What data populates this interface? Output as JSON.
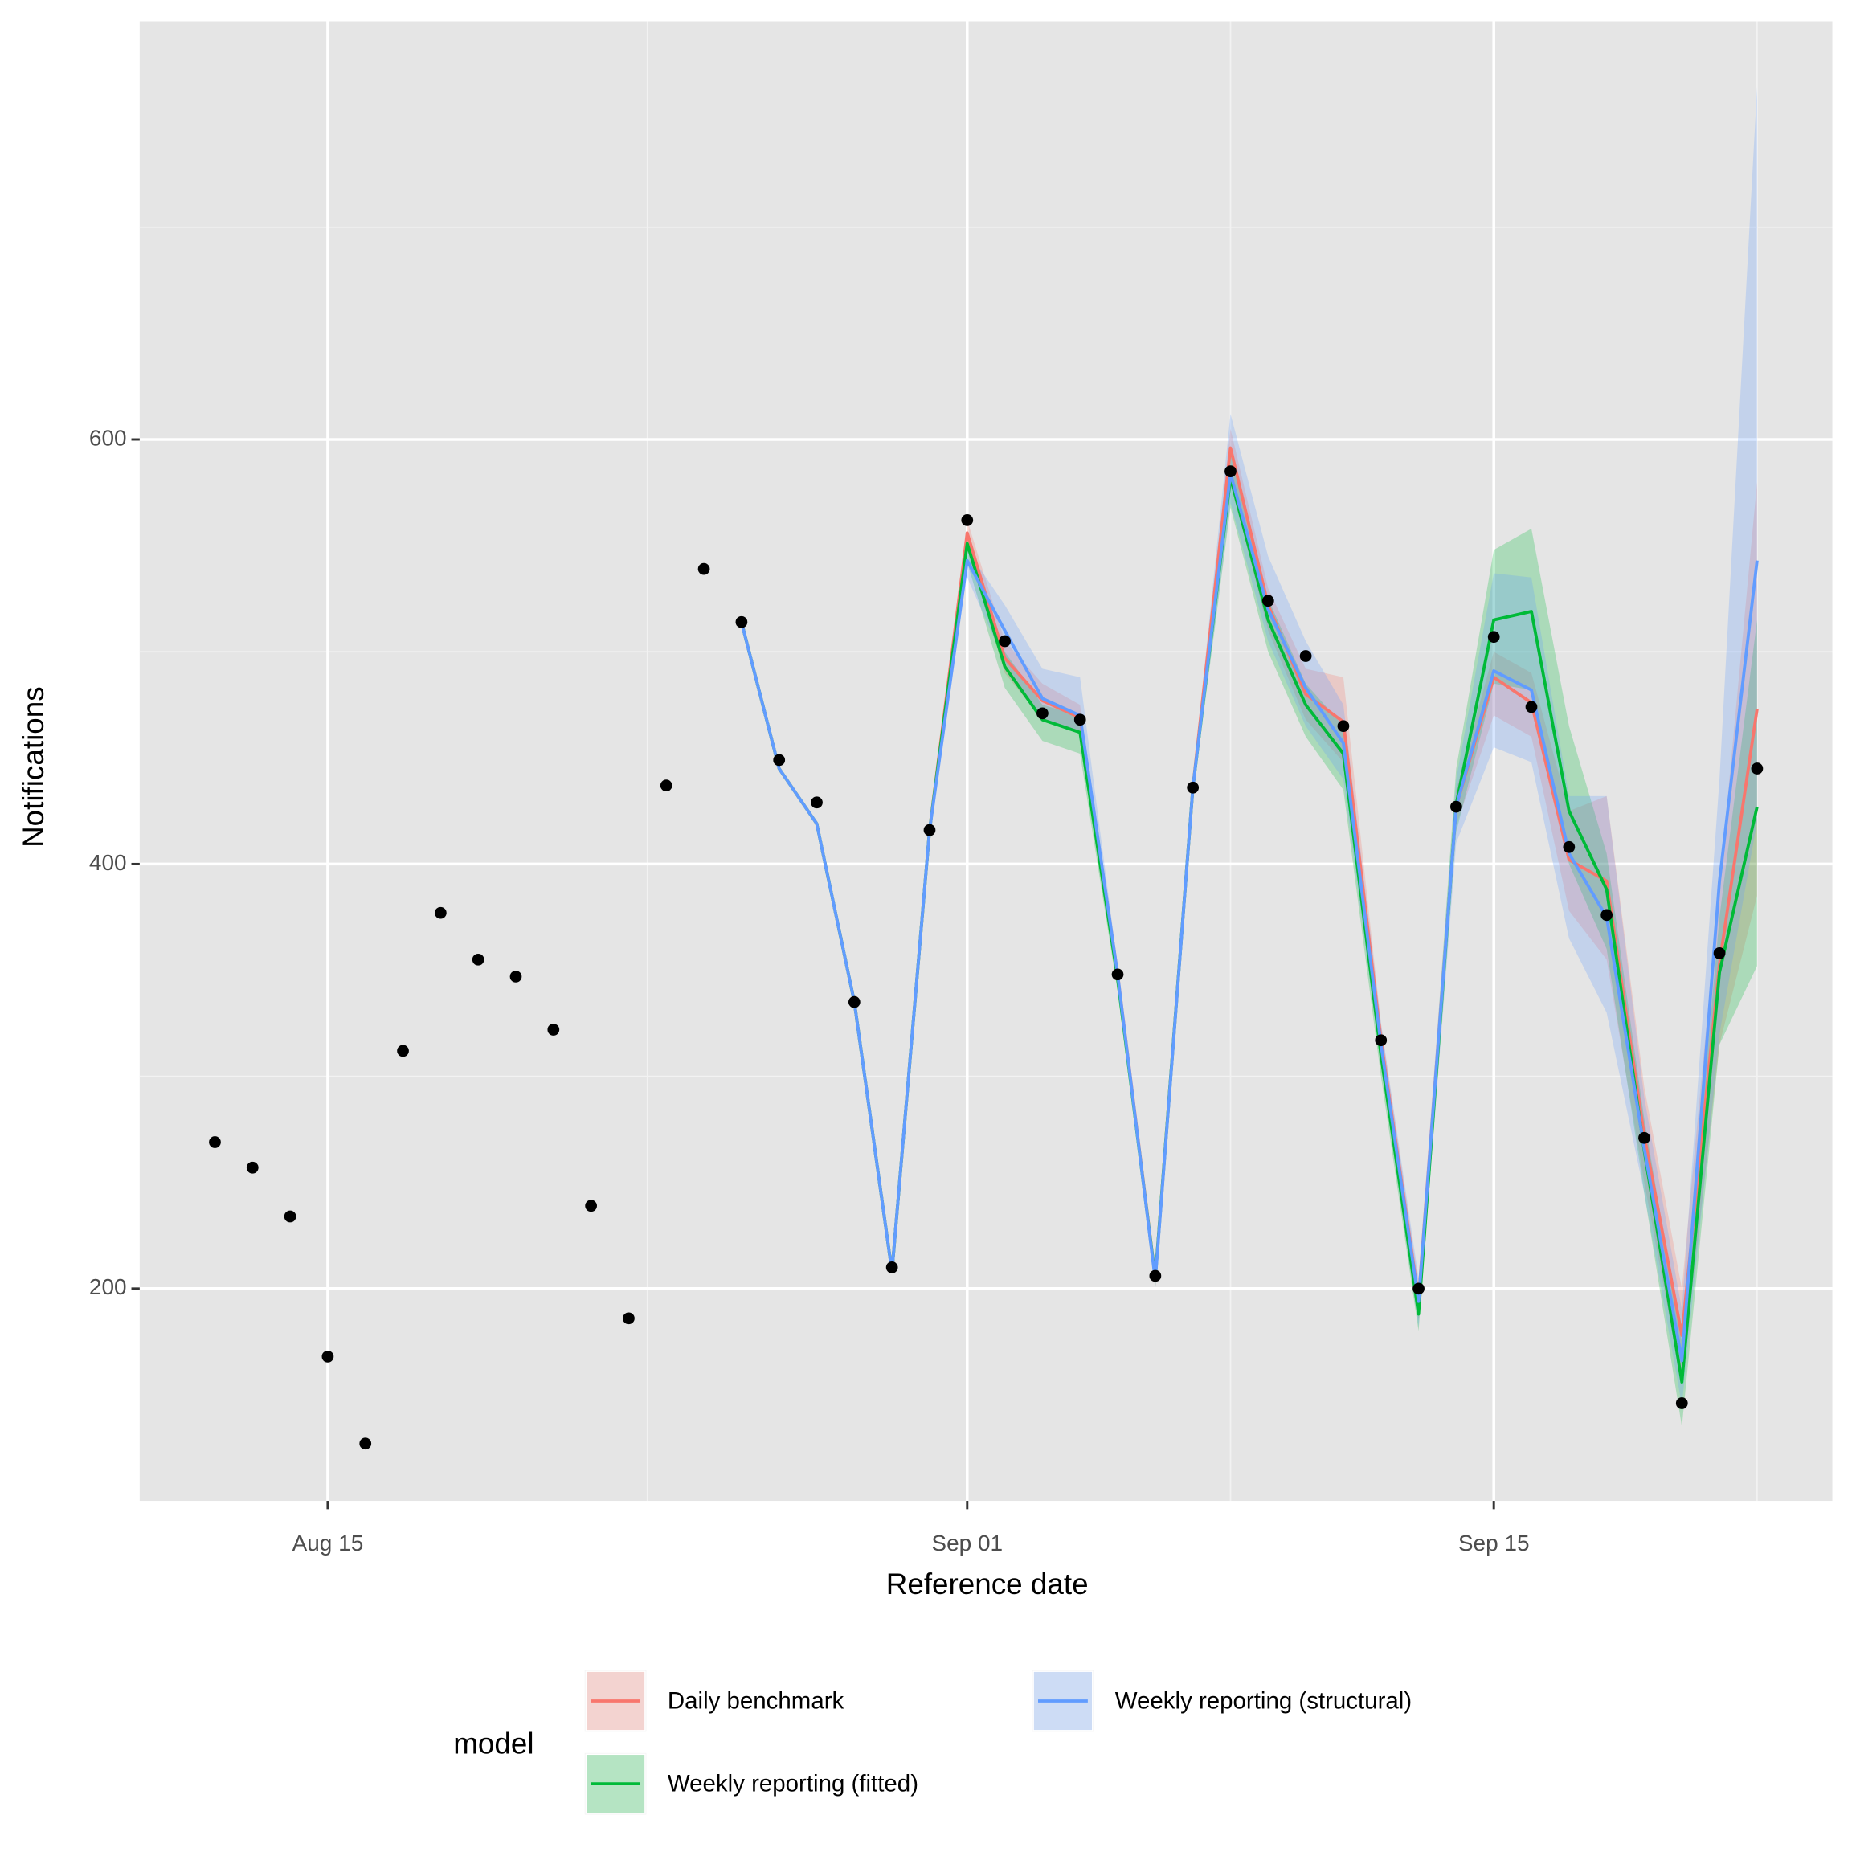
{
  "chart_data": {
    "type": "line",
    "x_label": "Reference date",
    "y_label": "Notifications",
    "legend_title": "model",
    "legend": "bottom",
    "grid": true,
    "minor_grid": true,
    "x": [
      "Aug 12",
      "Aug 13",
      "Aug 14",
      "Aug 15",
      "Aug 16",
      "Aug 17",
      "Aug 18",
      "Aug 19",
      "Aug 20",
      "Aug 21",
      "Aug 22",
      "Aug 23",
      "Aug 24",
      "Aug 25",
      "Aug 26",
      "Aug 27",
      "Aug 28",
      "Aug 29",
      "Aug 30",
      "Aug 31",
      "Sep 01",
      "Sep 02",
      "Sep 03",
      "Sep 04",
      "Sep 05",
      "Sep 06",
      "Sep 07",
      "Sep 08",
      "Sep 09",
      "Sep 10",
      "Sep 11",
      "Sep 12",
      "Sep 13",
      "Sep 14",
      "Sep 15",
      "Sep 16",
      "Sep 17",
      "Sep 18",
      "Sep 19",
      "Sep 20",
      "Sep 21",
      "Sep 22"
    ],
    "xlim": [
      "Aug 10",
      "Sep 24"
    ],
    "xticks": [
      "Aug 15",
      "Sep 01",
      "Sep 15"
    ],
    "ylim": [
      100,
      797
    ],
    "yticks": [
      200,
      400,
      600
    ],
    "observed": [
      269,
      257,
      234,
      168,
      127,
      312,
      377,
      355,
      347,
      322,
      239,
      186,
      437,
      539,
      514,
      449,
      429,
      335,
      210,
      416,
      562,
      505,
      471,
      468,
      348,
      206,
      436,
      585,
      524,
      498,
      465,
      317,
      200,
      427,
      507,
      474,
      408,
      376,
      271,
      146,
      358,
      445
    ],
    "series": [
      {
        "name": "Daily benchmark",
        "color": "#F8766D",
        "values": [
          null,
          null,
          null,
          null,
          null,
          null,
          null,
          null,
          null,
          null,
          null,
          null,
          null,
          null,
          514,
          445,
          419,
          335,
          208,
          416,
          556,
          497,
          477,
          469,
          348,
          205,
          436,
          596,
          522,
          480,
          467,
          317,
          195,
          427,
          488,
          476,
          402,
          392,
          272,
          178,
          353,
          473
        ],
        "lower": [
          null,
          null,
          null,
          null,
          null,
          null,
          null,
          null,
          null,
          null,
          null,
          null,
          null,
          null,
          null,
          null,
          null,
          null,
          null,
          null,
          548,
          490,
          468,
          462,
          343,
          200,
          432,
          580,
          510,
          468,
          448,
          305,
          185,
          418,
          470,
          460,
          378,
          355,
          250,
          155,
          315,
          385
        ],
        "upper": [
          null,
          null,
          null,
          null,
          null,
          null,
          null,
          null,
          null,
          null,
          null,
          null,
          null,
          null,
          null,
          null,
          null,
          null,
          null,
          null,
          562,
          505,
          485,
          475,
          352,
          208,
          440,
          605,
          530,
          492,
          488,
          325,
          202,
          435,
          500,
          490,
          425,
          432,
          295,
          200,
          390,
          580
        ]
      },
      {
        "name": "Weekly reporting (fitted)",
        "color": "#00BA38",
        "values": [
          null,
          null,
          null,
          null,
          null,
          null,
          null,
          null,
          null,
          null,
          null,
          null,
          null,
          null,
          514,
          445,
          419,
          335,
          208,
          416,
          551,
          493,
          468,
          462,
          346,
          205,
          436,
          582,
          515,
          475,
          452,
          310,
          188,
          428,
          515,
          519,
          425,
          388,
          265,
          156,
          349,
          427
        ],
        "lower": [
          null,
          null,
          null,
          null,
          null,
          null,
          null,
          null,
          null,
          null,
          null,
          null,
          null,
          null,
          null,
          null,
          null,
          null,
          null,
          null,
          542,
          483,
          458,
          452,
          340,
          200,
          432,
          568,
          500,
          460,
          435,
          300,
          180,
          415,
          485,
          482,
          400,
          360,
          245,
          135,
          315,
          352
        ],
        "upper": [
          null,
          null,
          null,
          null,
          null,
          null,
          null,
          null,
          null,
          null,
          null,
          null,
          null,
          null,
          null,
          null,
          null,
          null,
          null,
          null,
          555,
          500,
          475,
          470,
          350,
          208,
          440,
          595,
          525,
          485,
          465,
          320,
          198,
          445,
          548,
          558,
          465,
          405,
          280,
          175,
          375,
          515
        ]
      },
      {
        "name": "Weekly reporting (structural)",
        "color": "#619CFF",
        "values": [
          null,
          null,
          null,
          null,
          null,
          null,
          null,
          null,
          null,
          null,
          null,
          null,
          null,
          null,
          514,
          445,
          419,
          335,
          208,
          416,
          543,
          510,
          478,
          470,
          348,
          204,
          436,
          584,
          520,
          483,
          457,
          315,
          194,
          427,
          491,
          482,
          405,
          375,
          266,
          166,
          392,
          543
        ],
        "lower": [
          null,
          null,
          null,
          null,
          null,
          null,
          null,
          null,
          null,
          null,
          null,
          null,
          null,
          null,
          null,
          null,
          null,
          null,
          null,
          null,
          535,
          495,
          468,
          462,
          343,
          200,
          432,
          570,
          505,
          465,
          440,
          305,
          182,
          410,
          455,
          448,
          365,
          330,
          245,
          145,
          320,
          420
        ],
        "upper": [
          null,
          null,
          null,
          null,
          null,
          null,
          null,
          null,
          null,
          null,
          null,
          null,
          null,
          null,
          null,
          null,
          null,
          null,
          null,
          null,
          548,
          522,
          492,
          488,
          352,
          208,
          440,
          612,
          545,
          505,
          475,
          325,
          205,
          440,
          537,
          535,
          432,
          432,
          290,
          190,
          440,
          766
        ]
      }
    ]
  }
}
